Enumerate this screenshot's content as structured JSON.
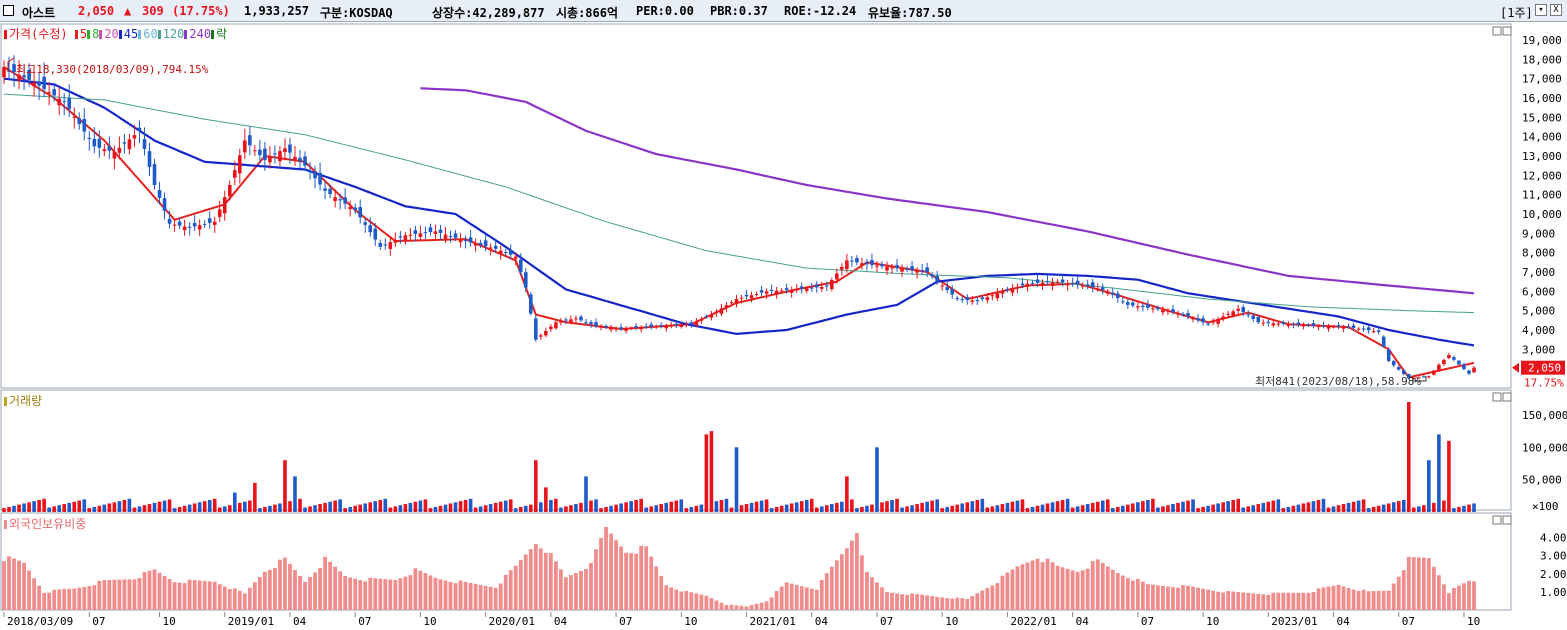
{
  "header": {
    "stock_name": "아스트",
    "price": "2,050",
    "change_arrow": "▲",
    "change": "309",
    "change_pct": "(17.75%)",
    "volume": "1,933,257",
    "market": "구분:KOSDAQ",
    "listed_shares": "상장수:42,289,877",
    "market_cap": "시총:866억",
    "per": "PER:0.00",
    "pbr": "PBR:0.37",
    "roe": "ROE:-12.24",
    "retention": "유보율:787.50",
    "period": "[1주]",
    "close_label": "X"
  },
  "colors": {
    "up": "#e8141c",
    "down": "#1e5bc8",
    "ma5": "#e3221d",
    "ma8": "#2fb02f",
    "ma20": "#d24fb6",
    "ma45": "#1426c8",
    "ma60": "#6cb6d8",
    "ma120": "#45a090",
    "ma240": "#8a34c8",
    "foreign": "#f08c8c"
  },
  "legend_price": {
    "label": "가격(수정)",
    "ma_items": [
      "5",
      "8",
      "20",
      "45",
      "60",
      "120",
      "240"
    ],
    "fall_label": "락"
  },
  "legend_volume": "거래량",
  "legend_foreign": "외국인보유비중",
  "annotations": {
    "high": "최고18,330(2018/03/09),794.15%",
    "low": "최저841(2023/08/18),58.98%"
  },
  "current": {
    "price": "2,050",
    "pct": "17.75%"
  },
  "chart_data": [
    {
      "type": "candlestick",
      "title": "가격(수정)",
      "y_ticks": [
        "19,000",
        "18,000",
        "17,000",
        "16,000",
        "15,000",
        "14,000",
        "13,000",
        "12,000",
        "11,000",
        "10,000",
        "9,000",
        "8,000",
        "7,000",
        "6,000",
        "5,000",
        "4,000",
        "3,000"
      ],
      "x_tick_labels": [
        "2018/03/09",
        "07",
        "10",
        "2019/01",
        "04",
        "07",
        "10",
        "2020/01",
        "04",
        "07",
        "10",
        "2021/01",
        "04",
        "07",
        "10",
        "2022/01",
        "04",
        "07",
        "10",
        "2023/01",
        "04",
        "07",
        "10"
      ],
      "x_tick_positions_weeks": [
        0,
        17,
        31,
        44,
        57,
        70,
        83,
        96,
        109,
        122,
        135,
        148,
        161,
        174,
        187,
        200,
        213,
        226,
        239,
        252,
        265,
        278,
        291
      ],
      "close_approx": [
        [
          0,
          17600
        ],
        [
          6,
          16800
        ],
        [
          12,
          15800
        ],
        [
          18,
          13500
        ],
        [
          22,
          13200
        ],
        [
          27,
          14300
        ],
        [
          30,
          11500
        ],
        [
          33,
          9500
        ],
        [
          37,
          9300
        ],
        [
          42,
          9600
        ],
        [
          45,
          11500
        ],
        [
          48,
          13800
        ],
        [
          52,
          12800
        ],
        [
          56,
          13400
        ],
        [
          60,
          12500
        ],
        [
          64,
          11200
        ],
        [
          70,
          10200
        ],
        [
          75,
          8300
        ],
        [
          80,
          8900
        ],
        [
          86,
          9100
        ],
        [
          92,
          8600
        ],
        [
          98,
          8200
        ],
        [
          102,
          7800
        ],
        [
          104,
          6200
        ],
        [
          106,
          3500
        ],
        [
          110,
          4400
        ],
        [
          114,
          4600
        ],
        [
          118,
          4200
        ],
        [
          123,
          4050
        ],
        [
          130,
          4200
        ],
        [
          137,
          4300
        ],
        [
          141,
          4800
        ],
        [
          146,
          5600
        ],
        [
          152,
          6000
        ],
        [
          158,
          6100
        ],
        [
          164,
          6250
        ],
        [
          168,
          7600
        ],
        [
          172,
          7400
        ],
        [
          178,
          7200
        ],
        [
          184,
          7000
        ],
        [
          190,
          5600
        ],
        [
          194,
          5500
        ],
        [
          198,
          5900
        ],
        [
          204,
          6400
        ],
        [
          210,
          6500
        ],
        [
          216,
          6300
        ],
        [
          220,
          6000
        ],
        [
          224,
          5300
        ],
        [
          228,
          5150
        ],
        [
          232,
          5000
        ],
        [
          236,
          4700
        ],
        [
          240,
          4300
        ],
        [
          246,
          5100
        ],
        [
          250,
          4400
        ],
        [
          256,
          4300
        ],
        [
          262,
          4200
        ],
        [
          268,
          4150
        ],
        [
          274,
          3900
        ],
        [
          276,
          2400
        ],
        [
          280,
          1500
        ],
        [
          284,
          1600
        ],
        [
          286,
          2200
        ],
        [
          288,
          2700
        ],
        [
          292,
          1741
        ],
        [
          293,
          2050
        ]
      ],
      "high": 18330,
      "low": 841,
      "moving_averages": [
        {
          "name": "5",
          "approx": [
            [
              0,
              17600
            ],
            [
              10,
              16000
            ],
            [
              20,
              13800
            ],
            [
              34,
              9700
            ],
            [
              44,
              10500
            ],
            [
              52,
              13000
            ],
            [
              60,
              12700
            ],
            [
              70,
              10200
            ],
            [
              78,
              8600
            ],
            [
              92,
              8700
            ],
            [
              102,
              7600
            ],
            [
              106,
              4800
            ],
            [
              112,
              4400
            ],
            [
              123,
              4050
            ],
            [
              137,
              4300
            ],
            [
              146,
              5400
            ],
            [
              158,
              6100
            ],
            [
              166,
              6500
            ],
            [
              172,
              7500
            ],
            [
              184,
              7000
            ],
            [
              192,
              5600
            ],
            [
              204,
              6300
            ],
            [
              214,
              6400
            ],
            [
              222,
              5800
            ],
            [
              232,
              5000
            ],
            [
              240,
              4400
            ],
            [
              248,
              4900
            ],
            [
              256,
              4300
            ],
            [
              268,
              4150
            ],
            [
              276,
              3000
            ],
            [
              280,
              1550
            ],
            [
              286,
              1900
            ],
            [
              293,
              2300
            ]
          ]
        },
        {
          "name": "45",
          "approx": [
            [
              0,
              17000
            ],
            [
              10,
              16700
            ],
            [
              20,
              15500
            ],
            [
              30,
              13800
            ],
            [
              40,
              12700
            ],
            [
              50,
              12500
            ],
            [
              60,
              12300
            ],
            [
              70,
              11400
            ],
            [
              80,
              10400
            ],
            [
              90,
              10000
            ],
            [
              100,
              8300
            ],
            [
              112,
              6100
            ],
            [
              124,
              5200
            ],
            [
              136,
              4300
            ],
            [
              146,
              3800
            ],
            [
              156,
              4000
            ],
            [
              168,
              4800
            ],
            [
              178,
              5300
            ],
            [
              186,
              6500
            ],
            [
              196,
              6800
            ],
            [
              206,
              6900
            ],
            [
              216,
              6800
            ],
            [
              226,
              6600
            ],
            [
              236,
              5900
            ],
            [
              246,
              5500
            ],
            [
              256,
              5100
            ],
            [
              266,
              4700
            ],
            [
              276,
              4000
            ],
            [
              286,
              3500
            ],
            [
              293,
              3200
            ]
          ]
        },
        {
          "name": "240",
          "approx": [
            [
              83,
              16500
            ],
            [
              92,
              16400
            ],
            [
              104,
              15800
            ],
            [
              116,
              14300
            ],
            [
              130,
              13100
            ],
            [
              146,
              12300
            ],
            [
              160,
              11500
            ],
            [
              176,
              10800
            ],
            [
              196,
              10100
            ],
            [
              216,
              9100
            ],
            [
              236,
              7900
            ],
            [
              256,
              6800
            ],
            [
              276,
              6300
            ],
            [
              293,
              5900
            ]
          ]
        },
        {
          "name": "120",
          "approx": [
            [
              0,
              16200
            ],
            [
              20,
              15900
            ],
            [
              40,
              14900
            ],
            [
              60,
              14100
            ],
            [
              80,
              12800
            ],
            [
              100,
              11400
            ],
            [
              120,
              9600
            ],
            [
              140,
              8100
            ],
            [
              160,
              7200
            ],
            [
              180,
              6900
            ],
            [
              200,
              6700
            ],
            [
              220,
              6200
            ],
            [
              240,
              5600
            ],
            [
              260,
              5200
            ],
            [
              280,
              5000
            ],
            [
              293,
              4900
            ]
          ]
        }
      ]
    },
    {
      "type": "bar",
      "title": "거래량",
      "y_ticks": [
        "150,000",
        "100,000",
        "50,000",
        "×100"
      ],
      "peak_values_x100": [
        [
          46,
          30000
        ],
        [
          50,
          45000
        ],
        [
          56,
          80000
        ],
        [
          58,
          55000
        ],
        [
          106,
          80000
        ],
        [
          108,
          38000
        ],
        [
          116,
          55000
        ],
        [
          140,
          120000
        ],
        [
          141,
          125000
        ],
        [
          146,
          100000
        ],
        [
          168,
          55000
        ],
        [
          174,
          100000
        ],
        [
          280,
          170000
        ],
        [
          284,
          80000
        ],
        [
          286,
          120000
        ],
        [
          288,
          110000
        ]
      ]
    },
    {
      "type": "bar",
      "title": "외국인보유비중",
      "y_ticks": [
        "4.00",
        "3.00",
        "2.00",
        "1.00"
      ],
      "approx_percent": [
        [
          0,
          2.9
        ],
        [
          4,
          2.6
        ],
        [
          8,
          1.0
        ],
        [
          14,
          1.2
        ],
        [
          20,
          1.6
        ],
        [
          26,
          1.8
        ],
        [
          30,
          2.2
        ],
        [
          34,
          1.6
        ],
        [
          42,
          1.6
        ],
        [
          48,
          0.9
        ],
        [
          52,
          2.2
        ],
        [
          56,
          2.8
        ],
        [
          60,
          1.6
        ],
        [
          64,
          2.8
        ],
        [
          68,
          1.9
        ],
        [
          72,
          1.7
        ],
        [
          78,
          1.7
        ],
        [
          82,
          2.2
        ],
        [
          86,
          1.8
        ],
        [
          92,
          1.5
        ],
        [
          98,
          1.3
        ],
        [
          102,
          2.4
        ],
        [
          106,
          3.8
        ],
        [
          108,
          3.4
        ],
        [
          112,
          1.8
        ],
        [
          116,
          2.4
        ],
        [
          118,
          3.2
        ],
        [
          120,
          4.5
        ],
        [
          124,
          3.3
        ],
        [
          128,
          3.4
        ],
        [
          132,
          1.4
        ],
        [
          136,
          1.0
        ],
        [
          140,
          0.8
        ],
        [
          144,
          0.3
        ],
        [
          148,
          0.2
        ],
        [
          152,
          0.5
        ],
        [
          156,
          1.5
        ],
        [
          162,
          1.2
        ],
        [
          168,
          3.5
        ],
        [
          170,
          4.5
        ],
        [
          172,
          2.0
        ],
        [
          176,
          1.0
        ],
        [
          184,
          0.8
        ],
        [
          192,
          0.6
        ],
        [
          198,
          1.6
        ],
        [
          202,
          2.4
        ],
        [
          206,
          3.0
        ],
        [
          210,
          2.4
        ],
        [
          214,
          2.2
        ],
        [
          218,
          2.7
        ],
        [
          222,
          2.1
        ],
        [
          228,
          1.4
        ],
        [
          236,
          1.3
        ],
        [
          244,
          1.0
        ],
        [
          252,
          0.9
        ],
        [
          260,
          1.0
        ],
        [
          266,
          1.4
        ],
        [
          272,
          1.0
        ],
        [
          276,
          1.1
        ],
        [
          280,
          2.8
        ],
        [
          284,
          2.9
        ],
        [
          286,
          2.0
        ],
        [
          288,
          1.0
        ],
        [
          292,
          1.6
        ],
        [
          293,
          1.6
        ]
      ]
    }
  ]
}
